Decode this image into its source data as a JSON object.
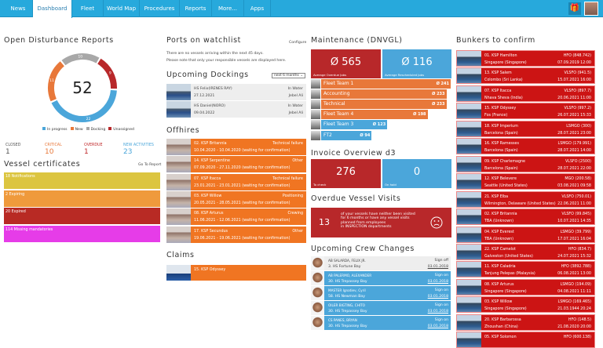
{
  "nav": {
    "tabs": [
      "News",
      "Dashboard",
      "Fleet",
      "World Map",
      "Procedures",
      "Reports",
      "More...",
      "Apps"
    ],
    "active": "Dashboard",
    "icons": [
      "gift-icon",
      "user-avatar"
    ]
  },
  "disturbance": {
    "title": "Open Disturbance Reports",
    "total": "52",
    "segments": [
      {
        "label": "Docking",
        "value": 10,
        "color": "#a8a8a8"
      },
      {
        "label": "Unassigned",
        "value": 9,
        "color": "#b8282a"
      },
      {
        "label": "In progress",
        "value": 22,
        "color": "#4ba6da"
      },
      {
        "label": "New",
        "value": 11,
        "color": "#e8783a"
      }
    ],
    "legend": [
      "In progress",
      "New",
      "Docking",
      "Unassigned"
    ],
    "stats": [
      {
        "label": "CLOSED",
        "value": "1",
        "color": "#555"
      },
      {
        "label": "CRITICAL",
        "value": "10",
        "color": "#e8783a"
      },
      {
        "label": "OVERDUE",
        "value": "1",
        "color": "#c0282a"
      },
      {
        "label": "NEW ACTIVITIES",
        "value": "23",
        "color": "#4ba6da"
      }
    ]
  },
  "certificates": {
    "title": "Vessel certificates",
    "link": "Go To Report",
    "items": [
      {
        "label": "18 Notifications",
        "color": "#dcc540"
      },
      {
        "label": "2 Expiring",
        "color": "#ef9a3c"
      },
      {
        "label": "20 Expired",
        "color": "#b82a24"
      },
      {
        "label": "114 Missing mandatories",
        "color": "#e63ce8"
      }
    ]
  },
  "ports": {
    "title": "Ports on watchlist",
    "configure": "Configure",
    "line1": "There are no vessels arriving within the next 45 days.",
    "line2": "Please note that only your responsible vessels are displayed here."
  },
  "dockings": {
    "title": "Upcoming Dockings",
    "select": "next 6 months",
    "rows": [
      {
        "name": "HS Felix(IRENES RAY)",
        "status": "In Water",
        "date": "27.12.2021",
        "place": "Jebel Ali"
      },
      {
        "name": "HS Daniel(NORO)",
        "status": "In Water",
        "date": "09.04.2022",
        "place": "Jebel Ali"
      }
    ]
  },
  "offhires": {
    "title": "Offhires",
    "rows": [
      {
        "name": "02. KSP Britannia",
        "reason": "Technical failure",
        "period": "10.04.2020 - 10.04.2020 (waiting for confirmation)"
      },
      {
        "name": "14. KSP Serpentine",
        "reason": "Other",
        "period": "07.09.2020 - 27.11.2020 (waiting for confirmation)"
      },
      {
        "name": "07. KSP Itacca",
        "reason": "Technical failure",
        "period": "23.01.2021 - 23.01.2021 (waiting for confirmation)"
      },
      {
        "name": "03. KSP Willow",
        "reason": "Positioning",
        "period": "20.05.2021 - 28.05.2021 (waiting for confirmation)"
      },
      {
        "name": "08. KSP Arturus",
        "reason": "Crewing",
        "period": "11.06.2021 - 12.06.2021 (waiting for confirmation)"
      },
      {
        "name": "17. KSP Secundus",
        "reason": "Other",
        "period": "19.06.2021 - 19.06.2021 (waiting for confirmation)"
      }
    ]
  },
  "claims": {
    "title": "Claims",
    "rows": [
      {
        "name": "15. KSP Odyssey"
      }
    ]
  },
  "maintenance": {
    "title": "Maintenance (DNVGL)",
    "overdue": {
      "value": "Ø 565",
      "label": "Average Overdue Jobs"
    },
    "rescheduled": {
      "value": "Ø 116",
      "label": "Average Rescheduled Jobs"
    },
    "teams": [
      {
        "name": "Fleet Team 1",
        "value": "Ø 241",
        "num": 241,
        "color": "#e8783a"
      },
      {
        "name": "Accounting",
        "value": "Ø 233",
        "num": 233,
        "color": "#e8783a"
      },
      {
        "name": "Technical",
        "value": "Ø 233",
        "num": 233,
        "color": "#e8783a"
      },
      {
        "name": "Fleet Team 4",
        "value": "Ø 198",
        "num": 198,
        "color": "#e8783a"
      },
      {
        "name": "Fleet Team 3",
        "value": "Ø 123",
        "num": 123,
        "color": "#4ba6da"
      },
      {
        "name": "FT2",
        "value": "Ø 94",
        "num": 94,
        "color": "#4ba6da"
      }
    ]
  },
  "invoice": {
    "title": "Invoice Overview d3",
    "check": {
      "value": "276",
      "label": "To check"
    },
    "hold": {
      "value": "0",
      "label": "On hold"
    }
  },
  "visits": {
    "title": "Overdue Vessel Visits",
    "count": "13",
    "text": "of your vessels have neither been visited for 6 months or have any vessel visits planned from employees",
    "text2": "in INSPECTION departments"
  },
  "crew": {
    "title": "Upcoming Crew Changes",
    "rows": [
      {
        "name": "AB SALARDA, FELIX JR.",
        "vessel": "3. HS Fortune Bay",
        "action": "Sign off",
        "date": "03.01.2018",
        "highlight": false
      },
      {
        "name": "AB PALERMO, ALEXANDER",
        "vessel": "30. HS Trepassey Bay",
        "action": "Sign on",
        "date": "03.01.2018",
        "highlight": true
      },
      {
        "name": "MASTER Ignatiev, Cyril",
        "vessel": "58. HS Newman Bay",
        "action": "Sign on",
        "date": "03.01.2018",
        "highlight": true
      },
      {
        "name": "OILER BIGTING, CHITO",
        "vessel": "30. HS Trepassey Bay",
        "action": "Sign on",
        "date": "03.01.2018",
        "highlight": true
      },
      {
        "name": "CS PANES, BRYAN",
        "vessel": "30. HS Trepassey Bay",
        "action": "Sign on",
        "date": "03.01.2018",
        "highlight": true
      }
    ]
  },
  "bunkers": {
    "title": "Bunkers to confirm",
    "rows": [
      {
        "name": "01. KSP Hamilton",
        "fuel": "HFO (848.742)",
        "port": "Singapore (Singapore)",
        "date": "07.09.2019 12:00"
      },
      {
        "name": "13. KSP Salem",
        "fuel": "VLSFO (941.5)",
        "port": "Colombo (Sri Lanka)",
        "date": "15.07.2021 16:00"
      },
      {
        "name": "07. KSP Itacca",
        "fuel": "VLSFO (897.7)",
        "port": "Nhava Sheva (India)",
        "date": "20.06.2021 11:00"
      },
      {
        "name": "15. KSP Odyssey",
        "fuel": "VLSFO (997.2)",
        "port": "Fos (France)",
        "date": "26.07.2021 15:33"
      },
      {
        "name": "18. KSP Imperium",
        "fuel": "LSMGO (300)",
        "port": "Barcelona (Spain)",
        "date": "28.07.2021 23:00"
      },
      {
        "name": "16. KSP Ramesses",
        "fuel": "LSMGO (179.991)",
        "port": "Barcelona (Spain)",
        "date": "28.07.2021 14:00"
      },
      {
        "name": "09. KSP Charlemagne",
        "fuel": "VLSFO (2500)",
        "port": "Barcelona (Spain)",
        "date": "28.07.2021 22:00"
      },
      {
        "name": "12. KSP Belevere",
        "fuel": "MGO (200.58)",
        "port": "Seattle (United States)",
        "date": "03.08.2021 09:58"
      },
      {
        "name": "21. KSP Elba",
        "fuel": "VLSFO (750.01)",
        "port": "Wilmington, Delaware (United States)",
        "date": "22.06.2021 11:00"
      },
      {
        "name": "02. KSP Britannia",
        "fuel": "VLSFO (99.845)",
        "port": "TBA (Unknown)",
        "date": "10.07.2021 14:35"
      },
      {
        "name": "04. KSP Everest",
        "fuel": "LSMGO (39.799)",
        "port": "TBA (Unknown)",
        "date": "17.07.2021 16:04"
      },
      {
        "name": "22. KSP Camelot",
        "fuel": "HFO (834.7)",
        "port": "Galveston (United States)",
        "date": "24.07.2021 15:32"
      },
      {
        "name": "11. KSP Caladria",
        "fuel": "HFO (3892.788)",
        "port": "Tanjung Pelepas (Malaysia)",
        "date": "06.08.2021 13:00"
      },
      {
        "name": "08. KSP Arturus",
        "fuel": "LSMGO (194.09)",
        "port": "Singapore (Singapore)",
        "date": "04.08.2021 11:11"
      },
      {
        "name": "03. KSP Willow",
        "fuel": "LSMGO (169.465)",
        "port": "Singapore (Singapore)",
        "date": "21.03.1944 20:24"
      },
      {
        "name": "20. KSP Barbarossa",
        "fuel": "HFO (148.5)",
        "port": "Zhoushan (China)",
        "date": "21.08.2020 20:00"
      },
      {
        "name": "05. KSP Solomon",
        "fuel": "HFO (600.138)",
        "port": "",
        "date": ""
      }
    ]
  }
}
